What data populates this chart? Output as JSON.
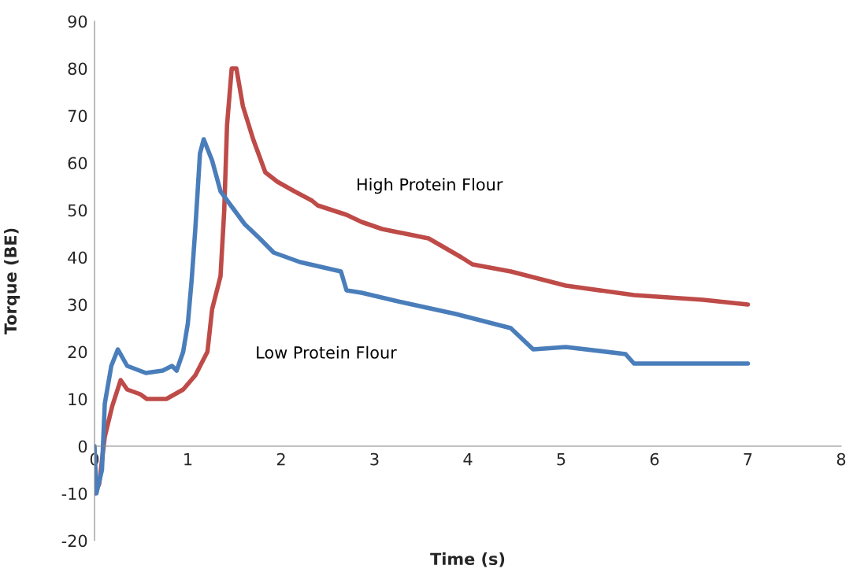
{
  "chart_data": {
    "type": "line",
    "xlabel": "Time (s)",
    "ylabel": "Torque (BE)",
    "xlim": [
      0,
      8
    ],
    "xticks": [
      0,
      1,
      2,
      3,
      4,
      5,
      6,
      7,
      8
    ],
    "ylim": [
      -20,
      90
    ],
    "yticks": [
      -20,
      -10,
      0,
      10,
      20,
      30,
      40,
      50,
      60,
      70,
      80,
      90
    ],
    "grid": false,
    "legend": false,
    "marker": "none",
    "line_style": "solid",
    "series": [
      {
        "name": "High Protein Flour",
        "color": "#be4b48",
        "x": [
          0,
          0.05,
          0.11,
          0.19,
          0.28,
          0.35,
          0.49,
          0.56,
          0.77,
          0.95,
          1.08,
          1.21,
          1.26,
          1.35,
          1.39,
          1.42,
          1.47,
          1.52,
          1.59,
          1.7,
          1.83,
          1.96,
          2.14,
          2.33,
          2.39,
          2.7,
          2.86,
          3.08,
          3.58,
          3.93,
          4.05,
          4.46,
          5.05,
          5.78,
          6.52,
          7.0
        ],
        "values": [
          -10,
          -8,
          2,
          8.5,
          14,
          12,
          11,
          10,
          10,
          12,
          15,
          20,
          29,
          36,
          50,
          68,
          80,
          80,
          72,
          65,
          58,
          56,
          54,
          52,
          51,
          49,
          47.5,
          46,
          44,
          40,
          38.5,
          37,
          34,
          32,
          31,
          30
        ]
      },
      {
        "name": "Low Protein Flour",
        "color": "#4a7ebb",
        "x": [
          0,
          0.02,
          0.08,
          0.11,
          0.18,
          0.25,
          0.35,
          0.55,
          0.73,
          0.83,
          0.88,
          0.95,
          1.0,
          1.04,
          1.08,
          1.13,
          1.17,
          1.26,
          1.35,
          1.46,
          1.61,
          1.77,
          1.92,
          2.2,
          2.64,
          2.7,
          2.86,
          3.29,
          3.87,
          4.46,
          4.7,
          5.05,
          5.69,
          5.78,
          7.0
        ],
        "values": [
          0,
          -10,
          -5,
          9,
          17,
          20.5,
          17,
          15.5,
          16,
          17,
          16,
          20,
          26,
          35,
          46,
          62,
          65,
          60.5,
          54,
          51,
          47,
          44,
          41,
          39,
          37,
          33,
          32.5,
          30.5,
          28,
          25,
          20.5,
          21,
          19.5,
          17.5,
          17.5
        ]
      }
    ]
  }
}
